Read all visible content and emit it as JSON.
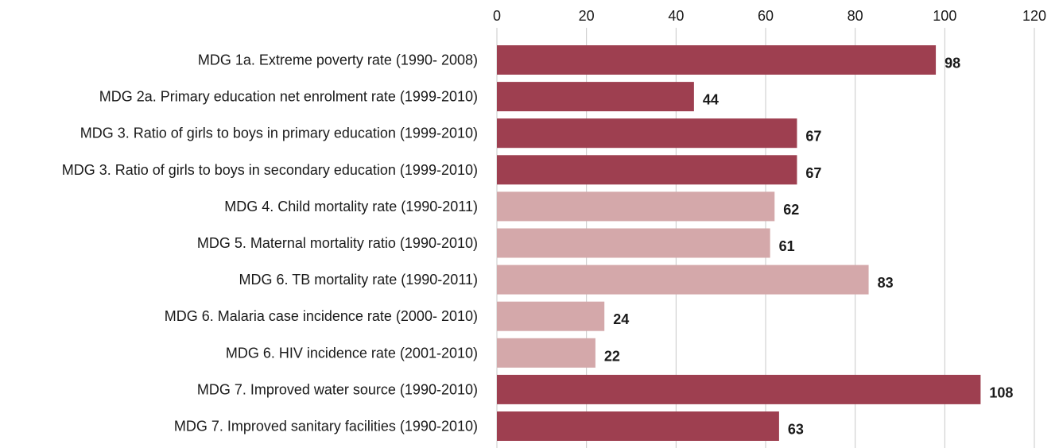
{
  "chart_data": {
    "type": "bar",
    "orientation": "horizontal",
    "title": "",
    "xlabel": "",
    "ylabel": "",
    "xlim": [
      0,
      120
    ],
    "x_ticks": [
      0,
      20,
      40,
      60,
      80,
      100,
      120
    ],
    "x_axis_position": "top",
    "grid": true,
    "legend": "none",
    "categories": [
      "MDG 1a. Extreme poverty rate (1990- 2008)",
      "MDG 2a. Primary education net enrolment rate (1999-2010)",
      "MDG 3. Ratio of girls to boys in primary education (1999-2010)",
      "MDG 3. Ratio of girls to boys in secondary education (1999-2010)",
      "MDG 4. Child mortality rate (1990-2011)",
      "MDG 5. Maternal mortality ratio (1990-2010)",
      "MDG 6. TB mortality rate (1990-2011)",
      "MDG 6. Malaria case incidence rate (2000- 2010)",
      "MDG 6. HIV incidence rate (2001-2010)",
      "MDG 7. Improved water source (1990-2010)",
      "MDG 7. Improved sanitary facilities (1990-2010)"
    ],
    "values": [
      98,
      44,
      67,
      67,
      62,
      61,
      83,
      24,
      22,
      108,
      63
    ],
    "bar_colors": [
      "#9e3f50",
      "#9e3f50",
      "#9e3f50",
      "#9e3f50",
      "#d4a8aa",
      "#d4a8aa",
      "#d4a8aa",
      "#d4a8aa",
      "#d4a8aa",
      "#9e3f50",
      "#9e3f50"
    ],
    "data_labels": [
      "98",
      "44",
      "67",
      "67",
      "62",
      "61",
      "83",
      "24",
      "22",
      "108",
      "63"
    ]
  }
}
